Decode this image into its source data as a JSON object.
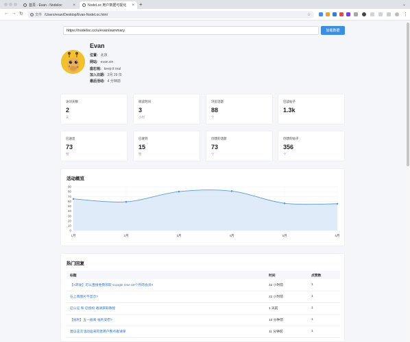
{
  "browser": {
    "tabs": [
      {
        "title": "首頁 - Evan - Nodeloc",
        "active": false
      },
      {
        "title": "NodeLoc 用户数据可视化",
        "active": true
      }
    ],
    "address_prefix": "文件",
    "address": "/Users/evan/Desktop/Evan-NodeLoc.html"
  },
  "search": {
    "value": "https://nodeloc.cc/u/evan/summary",
    "button_label": "加载数据"
  },
  "profile": {
    "name": "Evan",
    "fields": [
      {
        "key": "位置:",
        "value": "北京"
      },
      {
        "key": "网站:",
        "value": "evan.xin"
      },
      {
        "key": "座右铭:",
        "value": "keep it real"
      },
      {
        "key": "加入日期:",
        "value": "2月 29 日"
      },
      {
        "key": "最后活动:",
        "value": "4 分钟前"
      }
    ]
  },
  "stats": [
    {
      "label": "访问天数",
      "value": "2",
      "unit": "天"
    },
    {
      "label": "阅读时间",
      "value": "3",
      "unit": "小时"
    },
    {
      "label": "浏览话题",
      "value": "88",
      "unit": "个"
    },
    {
      "label": "已读帖子",
      "value": "1.3k",
      "unit": ""
    },
    {
      "label": "已送出",
      "value": "73",
      "unit": "赞"
    },
    {
      "label": "已收到",
      "value": "15",
      "unit": "赞"
    },
    {
      "label": "创建的话题",
      "value": "73",
      "unit": "个"
    },
    {
      "label": "创建的帖子",
      "value": "356",
      "unit": "个"
    }
  ],
  "activity": {
    "title": "活动概览"
  },
  "chart_data": {
    "type": "area",
    "title": "活动概览",
    "categories": [
      "1月",
      "2月",
      "3月",
      "4月",
      "5月",
      "6月"
    ],
    "values": [
      65,
      59,
      80,
      81,
      56,
      55
    ],
    "ylim": [
      0,
      90
    ],
    "yticks": [
      0,
      10,
      20,
      30,
      40,
      50,
      60,
      70,
      80,
      90
    ],
    "grid": true,
    "line_color": "#5b9bd5",
    "fill_color": "#dbe9f8"
  },
  "hot_replies": {
    "title": "热门回复",
    "columns": [
      "标题",
      "时间",
      "点赞数"
    ],
    "rows": [
      {
        "title": "【A转发】可以直接免费领取 Google One 18个月的会员!!",
        "time": "22 小时前",
        "likes": "1"
      },
      {
        "title": "石上南图片不显示?",
        "time": "22 小时前",
        "likes": "1"
      },
      {
        "title": "已认证 和 已授权 邀请获取教程",
        "time": "1 天前",
        "likes": "1"
      },
      {
        "title": "【福利】五一福来·福利安慰?",
        "time": "10 分钟前",
        "likes": "1"
      },
      {
        "title": "建议这次活动后来的老用户整点邀请单",
        "time": "11 分钟前",
        "likes": "1"
      }
    ]
  },
  "colors": {
    "accent": "#3b8ee0",
    "link": "#2d72c8",
    "avatar_bg": "#f2c12e"
  }
}
